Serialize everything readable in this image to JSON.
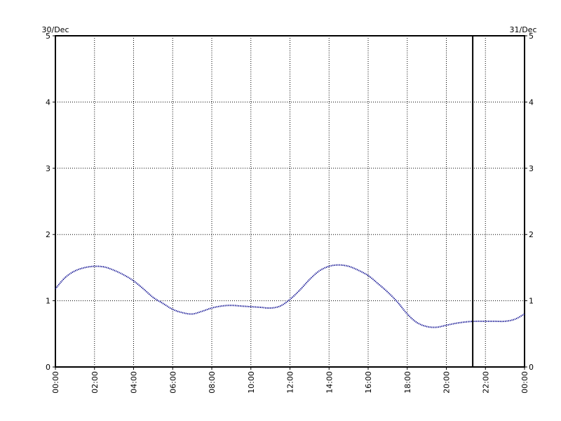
{
  "chart_data": {
    "type": "line",
    "start_date_label": "30/Dec",
    "end_date_label": "31/Dec",
    "x_tick_labels": [
      "00:00",
      "02:00",
      "04:00",
      "06:00",
      "08:00",
      "10:00",
      "12:00",
      "14:00",
      "16:00",
      "18:00",
      "20:00",
      "22:00",
      "00:00"
    ],
    "y_ticks": [
      0,
      1,
      2,
      3,
      4,
      5
    ],
    "ylim": [
      0,
      5
    ],
    "xlim_hours": [
      0,
      24
    ],
    "grid": true,
    "current_time_marker_hour": 21.35,
    "series": [
      {
        "color": "#00008b",
        "x": [
          0,
          0.5,
          1,
          1.5,
          2,
          2.5,
          3,
          3.5,
          4,
          4.5,
          5,
          5.5,
          6,
          6.5,
          7,
          7.5,
          8,
          8.5,
          9,
          9.5,
          10,
          10.5,
          11,
          11.5,
          12,
          12.5,
          13,
          13.5,
          14,
          14.5,
          15,
          15.5,
          16,
          16.5,
          17,
          17.5,
          18,
          18.5,
          19,
          19.5,
          20,
          20.5,
          21,
          21.5,
          22,
          22.5,
          23,
          23.5,
          24
        ],
        "y": [
          1.18,
          1.35,
          1.45,
          1.5,
          1.52,
          1.51,
          1.46,
          1.39,
          1.3,
          1.18,
          1.05,
          0.96,
          0.87,
          0.82,
          0.8,
          0.84,
          0.89,
          0.92,
          0.93,
          0.92,
          0.91,
          0.9,
          0.89,
          0.92,
          1.02,
          1.16,
          1.32,
          1.45,
          1.52,
          1.54,
          1.52,
          1.46,
          1.38,
          1.26,
          1.13,
          0.98,
          0.8,
          0.67,
          0.61,
          0.6,
          0.63,
          0.66,
          0.68,
          0.69,
          0.69,
          0.69,
          0.69,
          0.72,
          0.8
        ]
      }
    ]
  }
}
